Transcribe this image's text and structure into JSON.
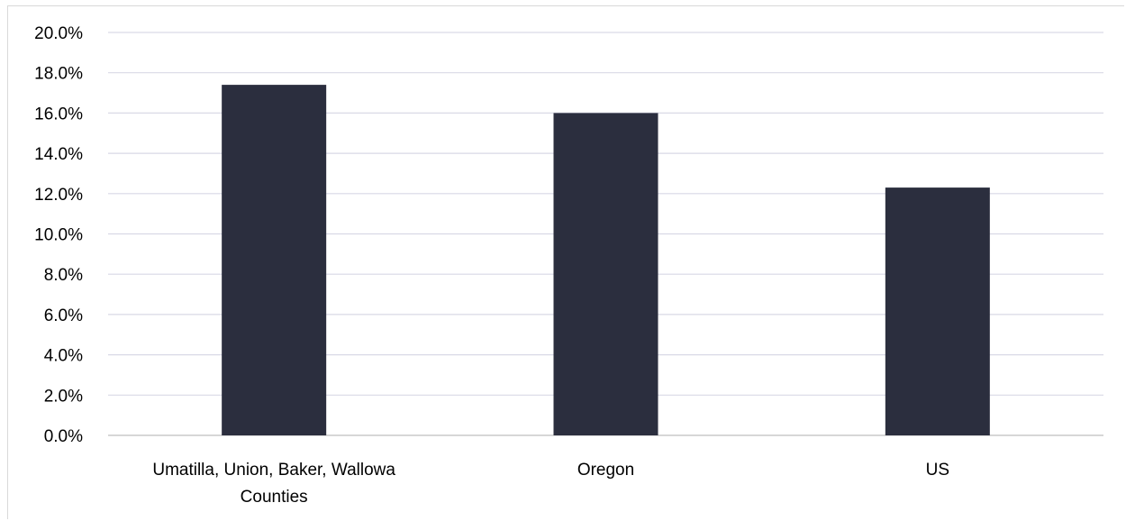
{
  "chart_data": {
    "type": "bar",
    "categories": [
      [
        "Umatilla, Union, Baker, Wallowa",
        "Counties"
      ],
      [
        "Oregon"
      ],
      [
        "US"
      ]
    ],
    "values": [
      17.4,
      16.0,
      12.3
    ],
    "ylim": [
      0,
      20
    ],
    "ytick_labels": [
      "0.0%",
      "2.0%",
      "4.0%",
      "6.0%",
      "8.0%",
      "10.0%",
      "12.0%",
      "14.0%",
      "16.0%",
      "18.0%",
      "20.0%"
    ],
    "grid": true,
    "colors": {
      "bar": "#2b2e3e",
      "grid": "#d9d9e6",
      "axis": "#bfbfbf"
    }
  }
}
